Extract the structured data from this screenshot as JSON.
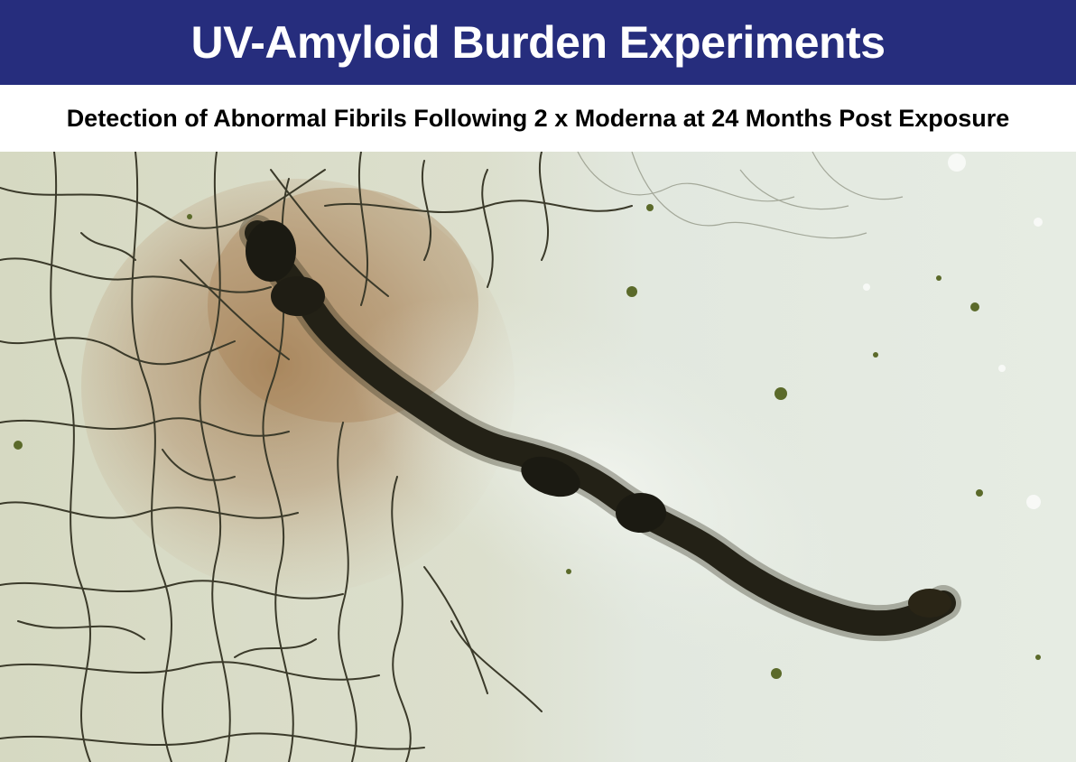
{
  "header": {
    "title": "UV-Amyloid Burden Experiments",
    "subtitle": "Detection of Abnormal Fibrils Following 2 x Moderna at 24 Months Post Exposure"
  },
  "image": {
    "description_icon": "microscopy-image",
    "colors": {
      "title_background": "#262d7d",
      "title_text": "#ffffff",
      "subtitle_text": "#000000",
      "background_left": "#d8dcc7",
      "background_right": "#e3e9de",
      "stain_brown": "#a07c52",
      "fibril_dark": "#1a1a12"
    }
  }
}
